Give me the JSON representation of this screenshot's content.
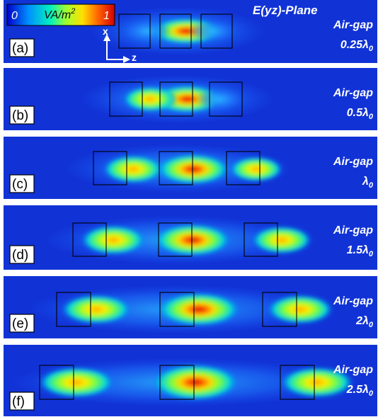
{
  "title": "E(yz)-Plane",
  "colorbar": {
    "min_label": "0",
    "max_label": "1",
    "unit_prefix": "VA/m",
    "unit_exp": "2"
  },
  "axes": {
    "vertical": "x",
    "horizontal": "z"
  },
  "panels": [
    {
      "label": "(a)",
      "airgap_title": "Air-gap",
      "airgap_value": "0.25",
      "airgap_symbol": "λ",
      "airgap_sub": "0"
    },
    {
      "label": "(b)",
      "airgap_title": "Air-gap",
      "airgap_value": "0.5",
      "airgap_symbol": "λ",
      "airgap_sub": "0"
    },
    {
      "label": "(c)",
      "airgap_title": "Air-gap",
      "airgap_value": "",
      "airgap_symbol": "λ",
      "airgap_sub": "0"
    },
    {
      "label": "(d)",
      "airgap_title": "Air-gap",
      "airgap_value": "1.5",
      "airgap_symbol": "λ",
      "airgap_sub": "0"
    },
    {
      "label": "(e)",
      "airgap_title": "Air-gap",
      "airgap_value": "2",
      "airgap_symbol": "λ",
      "airgap_sub": "0"
    },
    {
      "label": "(f)",
      "airgap_title": "Air-gap",
      "airgap_value": "2.5",
      "airgap_symbol": "λ",
      "airgap_sub": "0"
    }
  ],
  "colors": {
    "background_field": "#1133d6",
    "scale": [
      "#0000ff",
      "#00c8ff",
      "#00ff88",
      "#ffff00",
      "#ff8800",
      "#ff0000"
    ]
  }
}
